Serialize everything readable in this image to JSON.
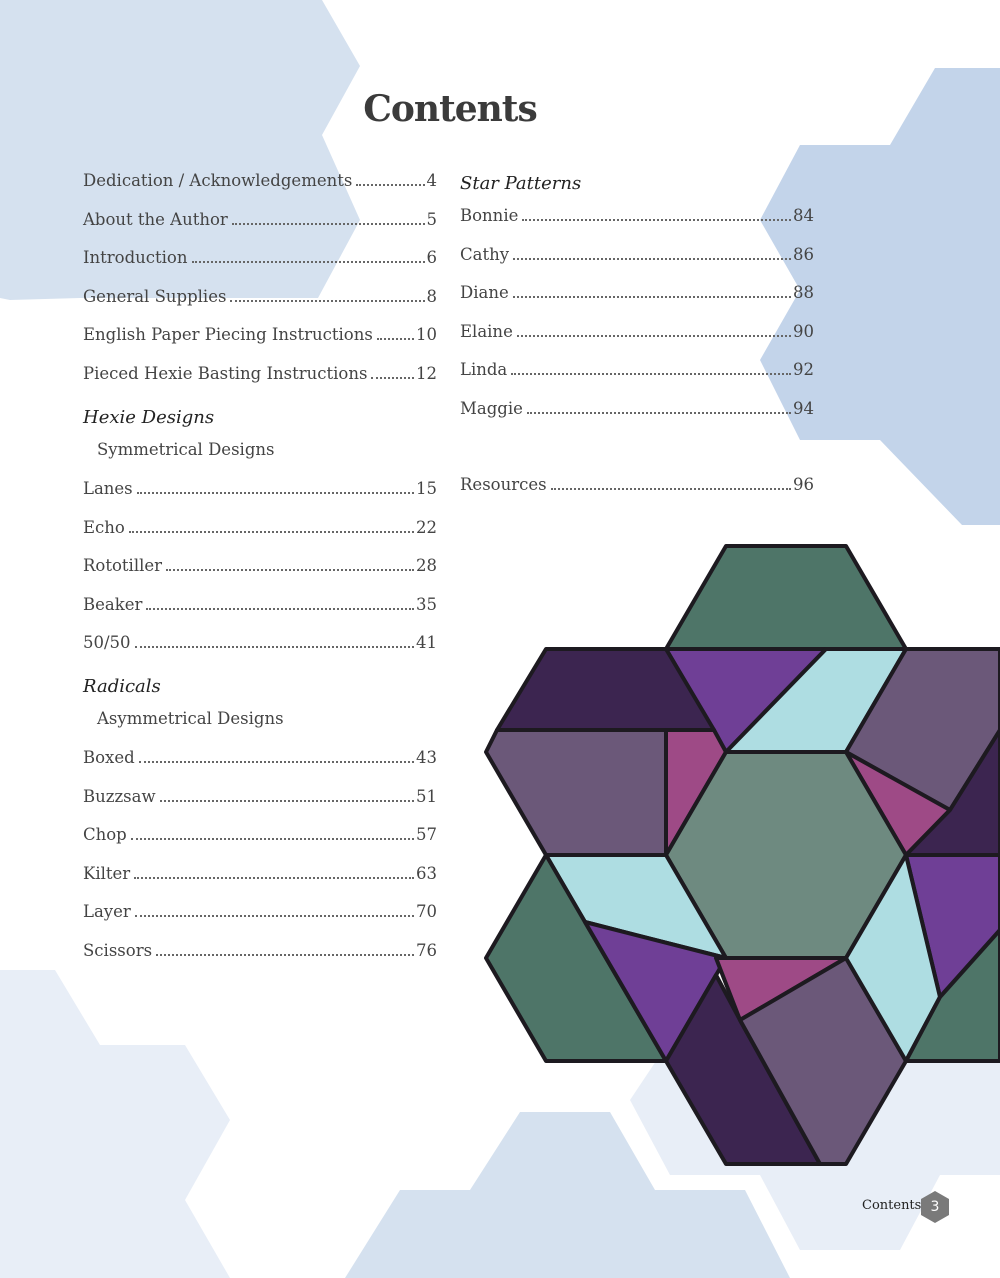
{
  "title": "Contents",
  "left_column": {
    "entries": [
      {
        "label": "Dedication / Acknowledgements",
        "page": "4"
      },
      {
        "label": "About the Author",
        "page": "5"
      },
      {
        "label": "Introduction",
        "page": "6"
      },
      {
        "label": "General Supplies",
        "page": "8"
      },
      {
        "label": "English Paper Piecing Instructions",
        "page": "10"
      },
      {
        "label": "Pieced Hexie Basting Instructions",
        "page": "12"
      }
    ],
    "hexie_designs": {
      "heading": "Hexie Designs",
      "subheading": "Symmetrical Designs",
      "entries": [
        {
          "label": "Lanes",
          "page": "15"
        },
        {
          "label": "Echo",
          "page": "22"
        },
        {
          "label": "Rototiller",
          "page": "28"
        },
        {
          "label": "Beaker",
          "page": "35"
        },
        {
          "label": "50/50",
          "page": "41"
        }
      ]
    },
    "radicals": {
      "heading": "Radicals",
      "subheading": "Asymmetrical Designs",
      "entries": [
        {
          "label": "Boxed",
          "page": "43"
        },
        {
          "label": "Buzzsaw",
          "page": "51"
        },
        {
          "label": "Chop",
          "page": "57"
        },
        {
          "label": "Kilter",
          "page": "63"
        },
        {
          "label": "Layer",
          "page": "70"
        },
        {
          "label": "Scissors",
          "page": "76"
        }
      ]
    }
  },
  "right_column": {
    "heading": "Star Patterns",
    "entries": [
      {
        "label": "Bonnie",
        "page": "84"
      },
      {
        "label": "Cathy",
        "page": "86"
      },
      {
        "label": "Diane",
        "page": "88"
      },
      {
        "label": "Elaine",
        "page": "90"
      },
      {
        "label": "Linda",
        "page": "92"
      },
      {
        "label": "Maggie",
        "page": "94"
      }
    ],
    "resources": {
      "label": "Resources",
      "page": "96"
    }
  },
  "footer": {
    "label": "Contents",
    "page_number": "3"
  },
  "colors": {
    "hex_light": "#d5e1ef",
    "hex_mid": "#c3d4ea",
    "hex_pale": "#e8eef7",
    "green": "#4e7568",
    "sage": "#6e8a80",
    "dark_purple": "#3c2550",
    "purple": "#6f3f96",
    "muted_purple": "#6b5879",
    "magenta": "#9e4a86",
    "light_blue": "#aedde2"
  }
}
